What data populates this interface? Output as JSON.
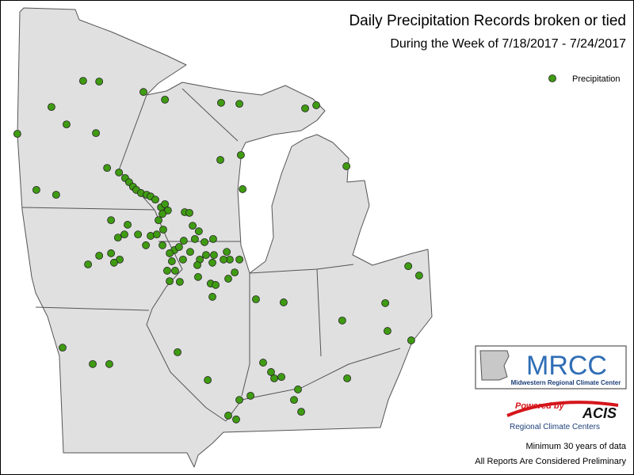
{
  "map": {
    "title": "Daily Precipitation Records broken or tied",
    "subtitle": "During the Week of 7/18/2017 - 7/24/2017",
    "legend": "Precipitation",
    "marker_color": "#3f9b12",
    "logo_title": "MRCC",
    "logo_subtitle": "Midwestern Regional Climate Center",
    "powered_by": "Powered by",
    "acis": "ACIS",
    "acis_subtitle": "Regional Climate Centers",
    "note1": "Minimum 30 years of data",
    "note2": "All Reports Are Considered Preliminary",
    "stations": [
      [
        -94.44,
        47.02
      ],
      [
        -93.79,
        47.0
      ],
      [
        -92.0,
        46.7
      ],
      [
        -95.72,
        46.27
      ],
      [
        -95.11,
        45.77
      ],
      [
        -93.92,
        45.52
      ],
      [
        -97.1,
        45.5
      ],
      [
        -93.47,
        44.52
      ],
      [
        -96.33,
        43.89
      ],
      [
        -95.53,
        43.75
      ],
      [
        -92.99,
        44.39
      ],
      [
        -92.74,
        44.23
      ],
      [
        -92.58,
        44.11
      ],
      [
        -92.42,
        43.98
      ],
      [
        -92.29,
        43.89
      ],
      [
        -92.1,
        43.8
      ],
      [
        -91.87,
        43.75
      ],
      [
        -91.71,
        43.7
      ],
      [
        -91.52,
        43.61
      ],
      [
        -91.29,
        43.39
      ],
      [
        -91.13,
        43.48
      ],
      [
        -91.01,
        43.3
      ],
      [
        -91.23,
        43.2
      ],
      [
        -91.39,
        43.02
      ],
      [
        -91.13,
        46.48
      ],
      [
        -88.86,
        46.39
      ],
      [
        -88.12,
        46.36
      ],
      [
        -85.01,
        46.32
      ],
      [
        -85.46,
        46.23
      ],
      [
        -88.06,
        44.89
      ],
      [
        -88.89,
        44.75
      ],
      [
        -87.99,
        43.91
      ],
      [
        -83.79,
        44.57
      ],
      [
        -90.33,
        43.25
      ],
      [
        -90.14,
        43.23
      ],
      [
        -90.01,
        42.86
      ],
      [
        -89.76,
        42.7
      ],
      [
        -89.53,
        42.39
      ],
      [
        -89.92,
        42.48
      ],
      [
        -90.37,
        42.43
      ],
      [
        -90.11,
        42.11
      ],
      [
        -93.31,
        43.02
      ],
      [
        -92.64,
        42.89
      ],
      [
        -92.77,
        42.61
      ],
      [
        -93.03,
        42.52
      ],
      [
        -92.22,
        42.61
      ],
      [
        -91.71,
        42.57
      ],
      [
        -91.46,
        42.61
      ],
      [
        -91.9,
        42.3
      ],
      [
        -91.23,
        42.3
      ],
      [
        -91.2,
        42.75
      ],
      [
        -90.75,
        42.16
      ],
      [
        -90.56,
        42.25
      ],
      [
        -90.4,
        41.89
      ],
      [
        -90.72,
        41.57
      ],
      [
        -91.04,
        41.57
      ],
      [
        -90.94,
        41.27
      ],
      [
        -90.53,
        41.25
      ],
      [
        -93.31,
        42.07
      ],
      [
        -93.79,
        42.0
      ],
      [
        -92.96,
        41.89
      ],
      [
        -93.19,
        41.8
      ],
      [
        -94.24,
        41.75
      ],
      [
        -90.94,
        42.07
      ],
      [
        -90.85,
        41.84
      ],
      [
        -89.72,
        41.89
      ],
      [
        -89.47,
        42.02
      ],
      [
        -89.21,
        41.8
      ],
      [
        -89.15,
        42.02
      ],
      [
        -88.63,
        42.11
      ],
      [
        -88.51,
        41.89
      ],
      [
        -88.12,
        41.89
      ],
      [
        -88.31,
        41.52
      ],
      [
        -88.57,
        41.34
      ],
      [
        -89.28,
        41.2
      ],
      [
        -89.08,
        41.16
      ],
      [
        -89.21,
        40.82
      ],
      [
        -89.82,
        41.73
      ],
      [
        -89.18,
        42.48
      ],
      [
        -88.76,
        41.89
      ],
      [
        -89.79,
        41.39
      ],
      [
        -87.45,
        40.75
      ],
      [
        -86.33,
        40.66
      ],
      [
        -83.96,
        40.14
      ],
      [
        -82.22,
        40.64
      ],
      [
        -82.13,
        39.84
      ],
      [
        -81.29,
        41.7
      ],
      [
        -80.85,
        41.43
      ],
      [
        -81.17,
        39.57
      ],
      [
        -95.27,
        39.36
      ],
      [
        -94.05,
        38.89
      ],
      [
        -93.38,
        38.89
      ],
      [
        -90.62,
        39.23
      ],
      [
        -89.4,
        38.43
      ],
      [
        -87.16,
        38.93
      ],
      [
        -86.84,
        38.66
      ],
      [
        -86.71,
        38.48
      ],
      [
        -86.42,
        38.52
      ],
      [
        -83.76,
        38.48
      ],
      [
        -85.75,
        38.16
      ],
      [
        -85.91,
        37.86
      ],
      [
        -85.62,
        37.52
      ],
      [
        -88.12,
        37.86
      ],
      [
        -87.67,
        37.98
      ],
      [
        -88.57,
        37.41
      ],
      [
        -88.25,
        37.3
      ]
    ]
  }
}
